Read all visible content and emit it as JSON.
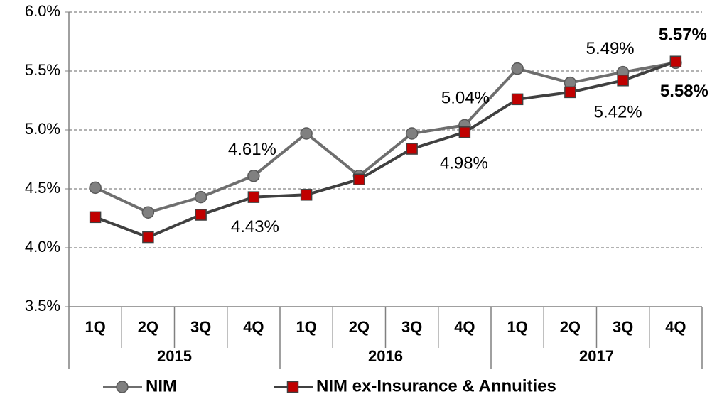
{
  "chart_data": {
    "type": "line",
    "categories": [
      "1Q",
      "2Q",
      "3Q",
      "4Q",
      "1Q",
      "2Q",
      "3Q",
      "4Q",
      "1Q",
      "2Q",
      "3Q",
      "4Q"
    ],
    "category_groups": [
      "2015",
      "2016",
      "2017"
    ],
    "series": [
      {
        "name": "NIM",
        "color": "#808080",
        "marker": "circle",
        "values": [
          4.51,
          4.3,
          4.43,
          4.61,
          4.97,
          4.61,
          4.97,
          5.04,
          5.52,
          5.4,
          5.49,
          5.57
        ],
        "value_labels": [
          null,
          null,
          null,
          "4.61%",
          null,
          null,
          null,
          "5.04%",
          null,
          null,
          "5.49%",
          "5.57%"
        ]
      },
      {
        "name": "NIM ex-Insurance & Annuities",
        "color": "#c00000",
        "marker": "square",
        "values": [
          4.26,
          4.09,
          4.28,
          4.43,
          4.45,
          4.58,
          4.84,
          4.98,
          5.26,
          5.32,
          5.42,
          5.58
        ],
        "value_labels": [
          null,
          null,
          null,
          "4.43%",
          null,
          null,
          null,
          "4.98%",
          null,
          null,
          "5.42%",
          "5.58%"
        ]
      }
    ],
    "ylim": [
      3.5,
      6.0
    ],
    "yticks": [
      {
        "value": 3.5,
        "label": "3.5%"
      },
      {
        "value": 4.0,
        "label": "4.0%"
      },
      {
        "value": 4.5,
        "label": "4.5%"
      },
      {
        "value": 5.0,
        "label": "5.0%"
      },
      {
        "value": 5.5,
        "label": "5.5%"
      },
      {
        "value": 6.0,
        "label": "6.0%"
      }
    ],
    "grid": true,
    "legend": "bottom"
  }
}
